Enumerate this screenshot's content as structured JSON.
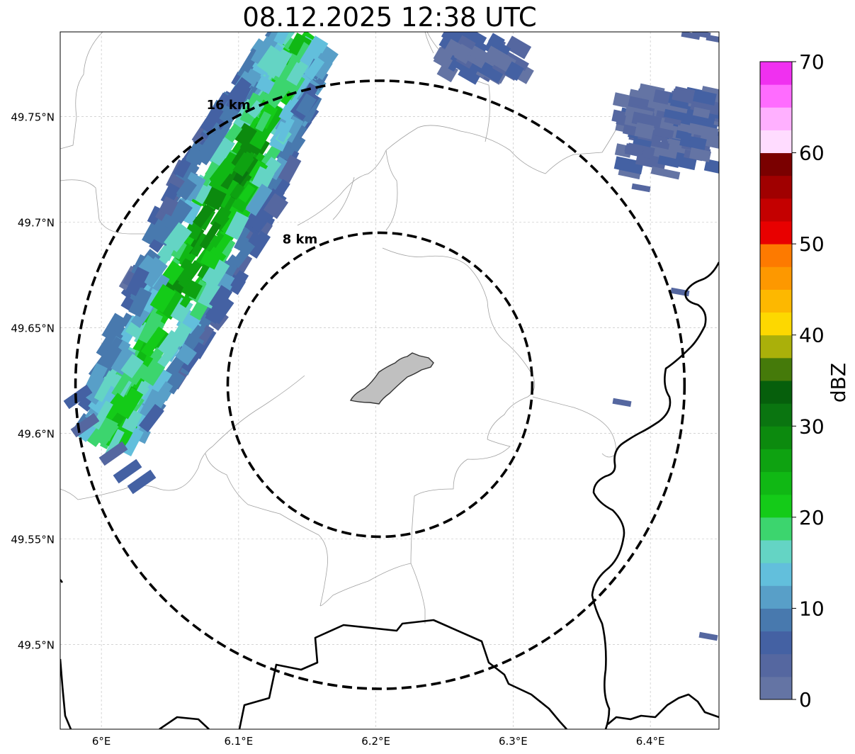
{
  "title": "08.12.2025 12:38 UTC",
  "map": {
    "lon_range": [
      5.97,
      6.45
    ],
    "lat_range": [
      49.46,
      49.79
    ],
    "x_ticks": [
      {
        "lon": 6.0,
        "label": "6°E"
      },
      {
        "lon": 6.1,
        "label": "6.1°E"
      },
      {
        "lon": 6.2,
        "label": "6.2°E"
      },
      {
        "lon": 6.3,
        "label": "6.3°E"
      },
      {
        "lon": 6.4,
        "label": "6.4°E"
      }
    ],
    "y_ticks": [
      {
        "lat": 49.5,
        "label": "49.5°N"
      },
      {
        "lat": 49.55,
        "label": "49.55°N"
      },
      {
        "lat": 49.6,
        "label": "49.6°N"
      },
      {
        "lat": 49.65,
        "label": "49.65°N"
      },
      {
        "lat": 49.7,
        "label": "49.7°N"
      },
      {
        "lat": 49.75,
        "label": "49.75°N"
      }
    ],
    "center": {
      "lon": 6.203,
      "lat": 49.623
    },
    "rings": [
      {
        "radius_km": 8,
        "label": "8 km"
      },
      {
        "radius_km": 16,
        "label": "16 km"
      }
    ],
    "grid_color": "#bbbbbb",
    "city_fill": "#c0c0c0"
  },
  "colorbar": {
    "label": "dBZ",
    "min": 0,
    "max": 70,
    "step": 2.5,
    "ticks": [
      "0",
      "10",
      "20",
      "30",
      "40",
      "50",
      "60",
      "70"
    ],
    "colors": [
      "#6474a4",
      "#5567a0",
      "#4461a3",
      "#4879ae",
      "#589fc8",
      "#62bfdc",
      "#64d4c4",
      "#3cd56e",
      "#14cb18",
      "#10b814",
      "#0ea211",
      "#0c8a0e",
      "#0a7510",
      "#065f0c",
      "#457a0a",
      "#aab00a",
      "#fdd800",
      "#fdb800",
      "#fd9800",
      "#fd7a00",
      "#e80000",
      "#c40000",
      "#a00000",
      "#7a0000",
      "#ffdcff",
      "#ffb0ff",
      "#ff6cff",
      "#f030f0"
    ]
  }
}
